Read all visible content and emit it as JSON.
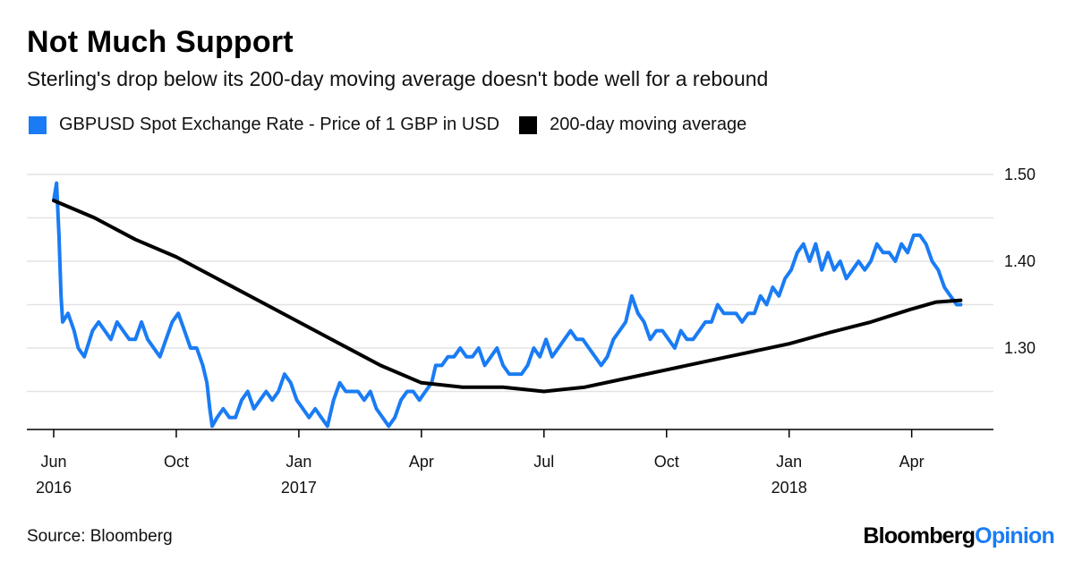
{
  "title": "Not Much Support",
  "subtitle": "Sterling's drop below its 200-day moving average doesn't bode well for a rebound",
  "legend": {
    "spot": "GBPUSD Spot Exchange Rate - Price of 1 GBP in USD",
    "ma": "200-day moving average"
  },
  "source": "Source: Bloomberg",
  "brand": {
    "part1": "Bloomberg",
    "part2": "Opinion"
  },
  "colors": {
    "spot": "#1a7cf4",
    "ma": "#000000",
    "grid": "#e3e3e3",
    "brand_accent": "#1a7cf4"
  },
  "chart_data": {
    "type": "line",
    "title": "Not Much Support",
    "xlabel": "",
    "ylabel": "",
    "ylim": [
      1.2,
      1.5
    ],
    "xlim": [
      0,
      23.4
    ],
    "x_unit": "months since Jun 2016",
    "y_ticks": [
      {
        "value": 1.5,
        "label": "1.50"
      },
      {
        "value": 1.4,
        "label": "1.40"
      },
      {
        "value": 1.3,
        "label": "1.30"
      }
    ],
    "y_gridlines": [
      1.5,
      1.45,
      1.4,
      1.35,
      1.3,
      1.25
    ],
    "x_ticks": [
      {
        "value": 0,
        "label": "Jun",
        "sub": "2016"
      },
      {
        "value": 3,
        "label": "Oct",
        "sub": ""
      },
      {
        "value": 6,
        "label": "Jan",
        "sub": "2017"
      },
      {
        "value": 9,
        "label": "Apr",
        "sub": ""
      },
      {
        "value": 12,
        "label": "Jul",
        "sub": ""
      },
      {
        "value": 15,
        "label": "Oct",
        "sub": ""
      },
      {
        "value": 18,
        "label": "Jan",
        "sub": "2018"
      },
      {
        "value": 21,
        "label": "Apr",
        "sub": ""
      }
    ],
    "series": [
      {
        "name": "GBPUSD Spot Exchange Rate - Price of 1 GBP in USD",
        "points": [
          [
            0.0,
            1.47
          ],
          [
            0.07,
            1.49
          ],
          [
            0.13,
            1.43
          ],
          [
            0.18,
            1.36
          ],
          [
            0.22,
            1.33
          ],
          [
            0.35,
            1.34
          ],
          [
            0.5,
            1.32
          ],
          [
            0.6,
            1.3
          ],
          [
            0.75,
            1.29
          ],
          [
            0.95,
            1.32
          ],
          [
            1.1,
            1.33
          ],
          [
            1.25,
            1.32
          ],
          [
            1.4,
            1.31
          ],
          [
            1.55,
            1.33
          ],
          [
            1.7,
            1.32
          ],
          [
            1.85,
            1.31
          ],
          [
            2.0,
            1.31
          ],
          [
            2.15,
            1.33
          ],
          [
            2.3,
            1.31
          ],
          [
            2.45,
            1.3
          ],
          [
            2.6,
            1.29
          ],
          [
            2.75,
            1.31
          ],
          [
            2.9,
            1.33
          ],
          [
            3.05,
            1.34
          ],
          [
            3.2,
            1.32
          ],
          [
            3.35,
            1.3
          ],
          [
            3.5,
            1.3
          ],
          [
            3.65,
            1.28
          ],
          [
            3.75,
            1.26
          ],
          [
            3.82,
            1.23
          ],
          [
            3.88,
            1.21
          ],
          [
            4.0,
            1.22
          ],
          [
            4.15,
            1.23
          ],
          [
            4.3,
            1.22
          ],
          [
            4.45,
            1.22
          ],
          [
            4.6,
            1.24
          ],
          [
            4.75,
            1.25
          ],
          [
            4.9,
            1.23
          ],
          [
            5.05,
            1.24
          ],
          [
            5.2,
            1.25
          ],
          [
            5.35,
            1.24
          ],
          [
            5.5,
            1.25
          ],
          [
            5.65,
            1.27
          ],
          [
            5.8,
            1.26
          ],
          [
            5.95,
            1.24
          ],
          [
            6.1,
            1.23
          ],
          [
            6.25,
            1.22
          ],
          [
            6.4,
            1.23
          ],
          [
            6.55,
            1.22
          ],
          [
            6.7,
            1.21
          ],
          [
            6.85,
            1.24
          ],
          [
            7.0,
            1.26
          ],
          [
            7.15,
            1.25
          ],
          [
            7.3,
            1.25
          ],
          [
            7.45,
            1.25
          ],
          [
            7.6,
            1.24
          ],
          [
            7.75,
            1.25
          ],
          [
            7.9,
            1.23
          ],
          [
            8.05,
            1.22
          ],
          [
            8.2,
            1.21
          ],
          [
            8.35,
            1.22
          ],
          [
            8.5,
            1.24
          ],
          [
            8.65,
            1.25
          ],
          [
            8.8,
            1.25
          ],
          [
            8.95,
            1.24
          ],
          [
            9.1,
            1.25
          ],
          [
            9.25,
            1.26
          ],
          [
            9.35,
            1.28
          ],
          [
            9.5,
            1.28
          ],
          [
            9.65,
            1.29
          ],
          [
            9.8,
            1.29
          ],
          [
            9.95,
            1.3
          ],
          [
            10.1,
            1.29
          ],
          [
            10.25,
            1.29
          ],
          [
            10.4,
            1.3
          ],
          [
            10.55,
            1.28
          ],
          [
            10.7,
            1.29
          ],
          [
            10.85,
            1.3
          ],
          [
            11.0,
            1.28
          ],
          [
            11.15,
            1.27
          ],
          [
            11.3,
            1.27
          ],
          [
            11.45,
            1.27
          ],
          [
            11.6,
            1.28
          ],
          [
            11.75,
            1.3
          ],
          [
            11.9,
            1.29
          ],
          [
            12.05,
            1.31
          ],
          [
            12.2,
            1.29
          ],
          [
            12.35,
            1.3
          ],
          [
            12.5,
            1.31
          ],
          [
            12.65,
            1.32
          ],
          [
            12.8,
            1.31
          ],
          [
            12.95,
            1.31
          ],
          [
            13.1,
            1.3
          ],
          [
            13.25,
            1.29
          ],
          [
            13.4,
            1.28
          ],
          [
            13.55,
            1.29
          ],
          [
            13.7,
            1.31
          ],
          [
            13.85,
            1.32
          ],
          [
            14.0,
            1.33
          ],
          [
            14.15,
            1.36
          ],
          [
            14.3,
            1.34
          ],
          [
            14.45,
            1.33
          ],
          [
            14.6,
            1.31
          ],
          [
            14.75,
            1.32
          ],
          [
            14.9,
            1.32
          ],
          [
            15.05,
            1.31
          ],
          [
            15.2,
            1.3
          ],
          [
            15.35,
            1.32
          ],
          [
            15.5,
            1.31
          ],
          [
            15.65,
            1.31
          ],
          [
            15.8,
            1.32
          ],
          [
            15.95,
            1.33
          ],
          [
            16.1,
            1.33
          ],
          [
            16.25,
            1.35
          ],
          [
            16.4,
            1.34
          ],
          [
            16.55,
            1.34
          ],
          [
            16.7,
            1.34
          ],
          [
            16.85,
            1.33
          ],
          [
            17.0,
            1.34
          ],
          [
            17.15,
            1.34
          ],
          [
            17.3,
            1.36
          ],
          [
            17.45,
            1.35
          ],
          [
            17.6,
            1.37
          ],
          [
            17.75,
            1.36
          ],
          [
            17.9,
            1.38
          ],
          [
            18.05,
            1.39
          ],
          [
            18.2,
            1.41
          ],
          [
            18.35,
            1.42
          ],
          [
            18.5,
            1.4
          ],
          [
            18.65,
            1.42
          ],
          [
            18.8,
            1.39
          ],
          [
            18.95,
            1.41
          ],
          [
            19.1,
            1.39
          ],
          [
            19.25,
            1.4
          ],
          [
            19.4,
            1.38
          ],
          [
            19.55,
            1.39
          ],
          [
            19.7,
            1.4
          ],
          [
            19.85,
            1.39
          ],
          [
            20.0,
            1.4
          ],
          [
            20.15,
            1.42
          ],
          [
            20.3,
            1.41
          ],
          [
            20.45,
            1.41
          ],
          [
            20.6,
            1.4
          ],
          [
            20.75,
            1.42
          ],
          [
            20.9,
            1.41
          ],
          [
            21.05,
            1.43
          ],
          [
            21.2,
            1.43
          ],
          [
            21.35,
            1.42
          ],
          [
            21.5,
            1.4
          ],
          [
            21.65,
            1.39
          ],
          [
            21.8,
            1.37
          ],
          [
            21.95,
            1.36
          ],
          [
            22.1,
            1.35
          ],
          [
            22.2,
            1.35
          ]
        ]
      },
      {
        "name": "200-day moving average",
        "points": [
          [
            0.0,
            1.47
          ],
          [
            1.0,
            1.45
          ],
          [
            2.0,
            1.425
          ],
          [
            3.0,
            1.405
          ],
          [
            4.0,
            1.38
          ],
          [
            5.0,
            1.355
          ],
          [
            6.0,
            1.33
          ],
          [
            7.0,
            1.305
          ],
          [
            8.0,
            1.28
          ],
          [
            9.0,
            1.26
          ],
          [
            10.0,
            1.255
          ],
          [
            11.0,
            1.255
          ],
          [
            12.0,
            1.25
          ],
          [
            13.0,
            1.255
          ],
          [
            14.0,
            1.265
          ],
          [
            15.0,
            1.275
          ],
          [
            16.0,
            1.285
          ],
          [
            17.0,
            1.295
          ],
          [
            18.0,
            1.305
          ],
          [
            19.0,
            1.318
          ],
          [
            20.0,
            1.33
          ],
          [
            21.0,
            1.345
          ],
          [
            21.6,
            1.353
          ],
          [
            22.2,
            1.355
          ]
        ]
      }
    ]
  }
}
